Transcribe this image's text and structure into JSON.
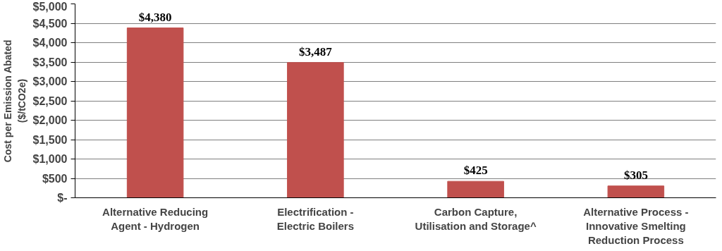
{
  "chart_data": {
    "type": "bar",
    "ylabel": "Cost per Emission Abated\n($/tCO2e)",
    "categories": [
      "Alternative Reducing Agent - Hydrogen",
      "Electrification - Electric Boilers",
      "Carbon Capture, Utilisation and Storage^",
      "Alternative Process - Innovative Smelting Reduction Process"
    ],
    "values": [
      4380,
      3487,
      425,
      305
    ],
    "value_labels": [
      "$4,380",
      "$3,487",
      "$425",
      "$305"
    ],
    "color": "#c0504d",
    "ylim": [
      0,
      5000
    ],
    "yticks": [
      {
        "value": 0,
        "label": "$-"
      },
      {
        "value": 500,
        "label": "$500"
      },
      {
        "value": 1000,
        "label": "$1,000"
      },
      {
        "value": 1500,
        "label": "$1,500"
      },
      {
        "value": 2000,
        "label": "$2,000"
      },
      {
        "value": 2500,
        "label": "$2,500"
      },
      {
        "value": 3000,
        "label": "$3,000"
      },
      {
        "value": 3500,
        "label": "$3,500"
      },
      {
        "value": 4000,
        "label": "$4,000"
      },
      {
        "value": 4500,
        "label": "$4,500"
      },
      {
        "value": 5000,
        "label": "$5,000"
      }
    ],
    "grid": "y"
  }
}
